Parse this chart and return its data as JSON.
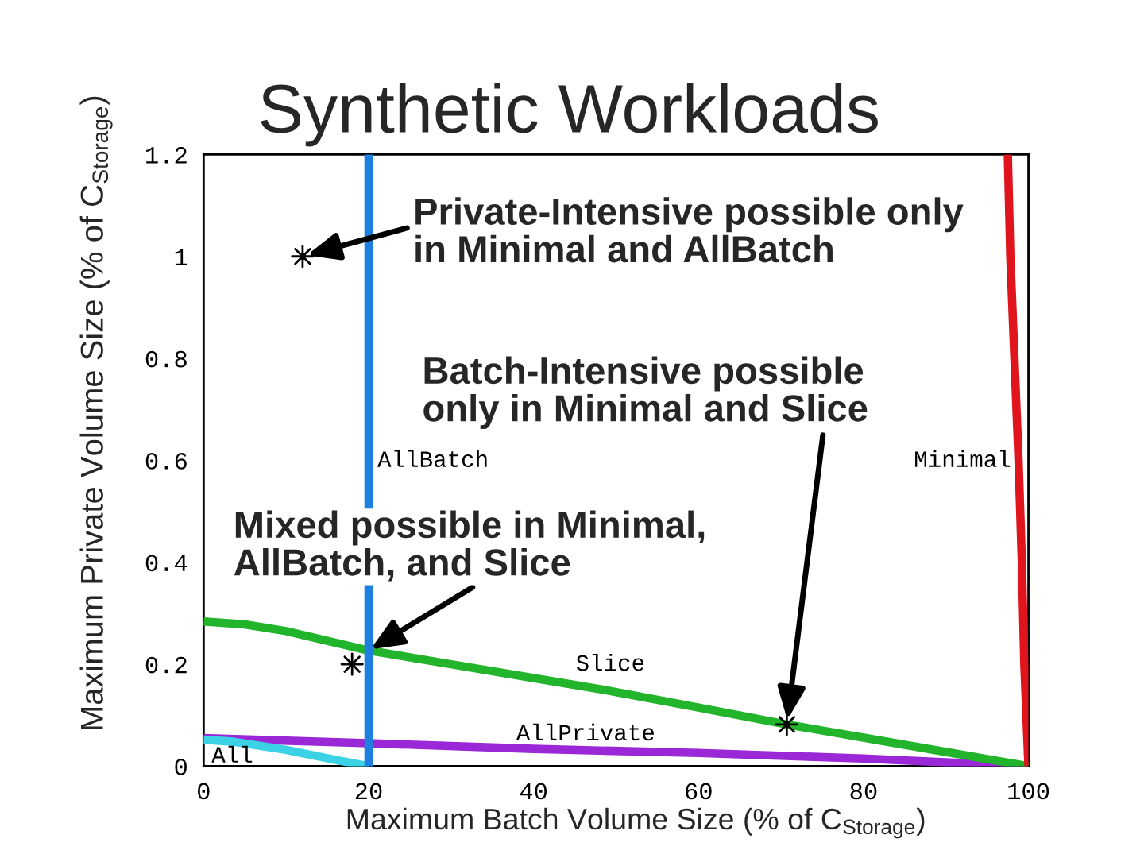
{
  "chart_data": {
    "type": "line",
    "title": "Synthetic Workloads",
    "xlabel": "Maximum Batch Volume Size (% of C$_{Storage}$)",
    "ylabel": "Maximum Private Volume Size (% of C$_{Storage}$)",
    "xlim": [
      0,
      100
    ],
    "ylim": [
      0,
      1.2
    ],
    "xticks": [
      0,
      20,
      40,
      60,
      80,
      100
    ],
    "yticks": [
      0,
      0.2,
      0.4,
      0.6,
      0.8,
      1,
      1.2
    ],
    "series": [
      {
        "name": "AllPrivate",
        "color": "#9a28d6",
        "x": [
          0,
          20,
          40,
          60,
          80,
          100
        ],
        "values": [
          0.055,
          0.045,
          0.034,
          0.026,
          0.015,
          0
        ]
      },
      {
        "name": "All",
        "color": "#3cd2e6",
        "x": [
          0,
          3.6,
          10,
          16.4,
          20
        ],
        "values": [
          0.052,
          0.048,
          0.032,
          0.011,
          0
        ]
      },
      {
        "name": "Slice",
        "color": "#22b42a",
        "x": [
          0,
          5,
          10,
          20,
          30,
          40,
          48.5,
          60,
          70.7,
          80,
          90,
          100
        ],
        "values": [
          0.284,
          0.278,
          0.265,
          0.227,
          0.2,
          0.173,
          0.15,
          0.115,
          0.082,
          0.056,
          0.028,
          0
        ]
      },
      {
        "name": "Minimal",
        "color": "#e0141c",
        "x": [
          97.5,
          97.8,
          98.3,
          98.8,
          99.2,
          99.5,
          100
        ],
        "values": [
          1.2,
          1,
          0.8,
          0.6,
          0.4,
          0.2,
          0
        ]
      },
      {
        "type": "scatter",
        "color": "#000000",
        "marker": "star",
        "x": [
          12,
          18,
          70.7
        ],
        "values": [
          1,
          0.2,
          0.082
        ]
      }
    ],
    "ref_lines": [
      {
        "axis": "x",
        "value": 20,
        "label": "AllBatch",
        "color": "#1f7fe0"
      }
    ],
    "annotations": [
      {
        "text": "Private-Intensive possible only\nin Minimal and AllBatch",
        "x": 12,
        "y": 1
      },
      {
        "text": "Batch-Intensive possible\nonly in Minimal and Slice",
        "x": 70.7,
        "y": 0.082
      },
      {
        "text": "Mixed possible in Minimal,\nAllBatch, and Slice",
        "x": 20,
        "y": 0.227
      }
    ]
  }
}
